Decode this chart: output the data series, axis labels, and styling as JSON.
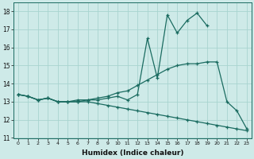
{
  "xlabel": "Humidex (Indice chaleur)",
  "bg_color": "#ceeae8",
  "grid_color": "#a8d4d0",
  "line_color": "#1a6b60",
  "xlim": [
    -0.5,
    23.5
  ],
  "ylim": [
    11,
    18.5
  ],
  "yticks": [
    11,
    12,
    13,
    14,
    15,
    16,
    17,
    18
  ],
  "xticks": [
    0,
    1,
    2,
    3,
    4,
    5,
    6,
    7,
    8,
    9,
    10,
    11,
    12,
    13,
    14,
    15,
    16,
    17,
    18,
    19,
    20,
    21,
    22,
    23
  ],
  "line1_x": [
    0,
    1,
    2,
    3,
    4,
    5,
    6,
    7,
    8,
    9,
    10,
    11,
    12,
    13,
    14,
    15,
    16,
    17,
    18,
    19
  ],
  "line1_y": [
    13.4,
    13.3,
    13.1,
    13.2,
    13.0,
    13.0,
    13.0,
    13.1,
    13.1,
    13.2,
    13.3,
    13.1,
    13.4,
    16.5,
    14.3,
    17.8,
    16.8,
    17.5,
    17.9,
    17.2
  ],
  "line2_x": [
    0,
    1,
    2,
    3,
    4,
    5,
    6,
    7,
    8,
    9,
    10,
    11,
    12,
    13,
    14,
    15,
    16,
    17,
    18,
    19,
    20,
    21,
    22,
    23
  ],
  "line2_y": [
    13.4,
    13.3,
    13.1,
    13.2,
    13.0,
    13.0,
    13.1,
    13.1,
    13.2,
    13.3,
    13.5,
    13.6,
    13.9,
    14.2,
    14.5,
    14.8,
    15.0,
    15.1,
    15.1,
    15.2,
    15.2,
    13.0,
    12.5,
    11.5
  ],
  "line3_x": [
    0,
    1,
    2,
    3,
    4,
    5,
    6,
    7,
    8,
    9,
    10,
    11,
    12,
    13,
    14,
    15,
    16,
    17,
    18,
    19,
    20,
    21,
    22,
    23
  ],
  "line3_y": [
    13.4,
    13.3,
    13.1,
    13.2,
    13.0,
    13.0,
    13.0,
    13.0,
    12.9,
    12.8,
    12.7,
    12.6,
    12.5,
    12.4,
    12.3,
    12.2,
    12.1,
    12.0,
    11.9,
    11.8,
    11.7,
    11.6,
    11.5,
    11.4
  ]
}
